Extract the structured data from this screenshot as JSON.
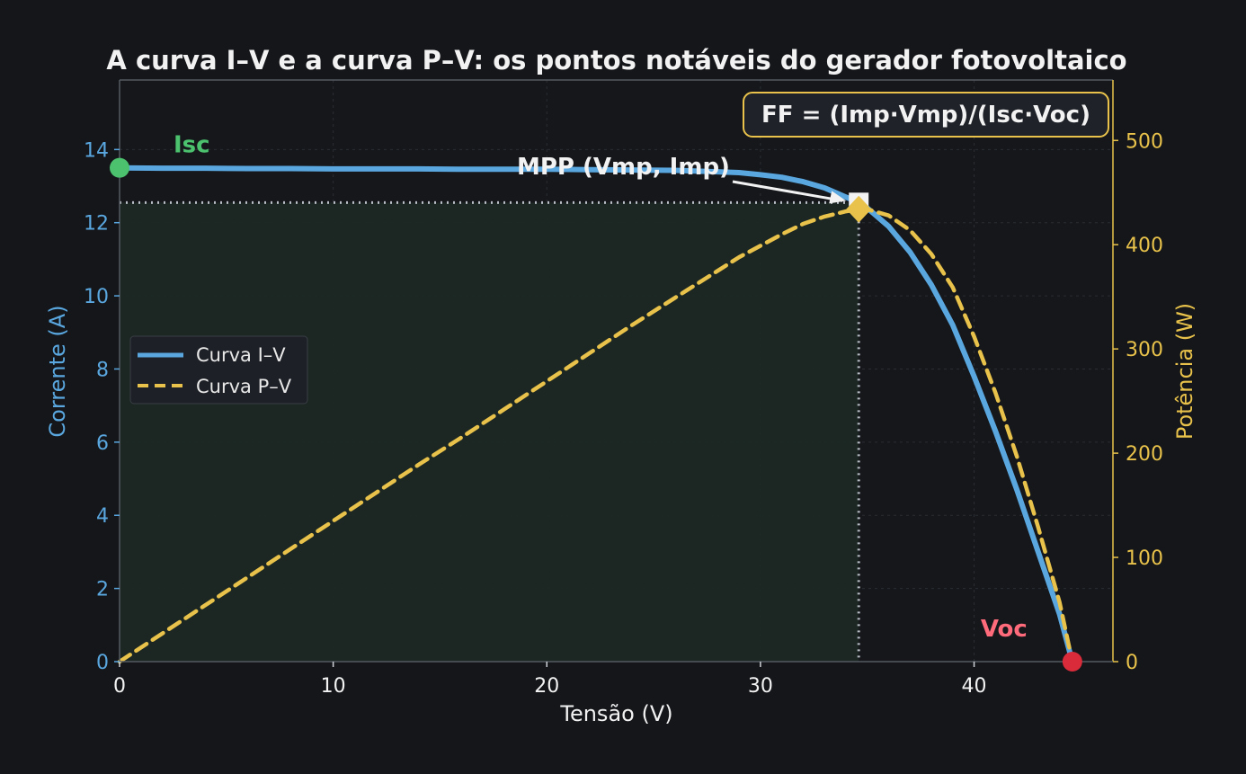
{
  "chart_data": {
    "type": "line",
    "title": "A curva I–V e a curva P–V: os pontos notáveis do gerador fotovoltaico",
    "xlabel": "Tensão (V)",
    "ylabel_left": "Corrente (A)",
    "ylabel_right": "Potência (W)",
    "xlim": [
      0,
      46.5
    ],
    "ylim_left": [
      0,
      15.9
    ],
    "ylim_right": [
      0,
      558
    ],
    "x_ticks": [
      0,
      10,
      20,
      30,
      40
    ],
    "y_left_ticks": [
      0,
      2,
      4,
      6,
      8,
      10,
      12,
      14
    ],
    "y_right_ticks": [
      0,
      100,
      200,
      300,
      400,
      500
    ],
    "grid": true,
    "legend_position": "center-left",
    "colors": {
      "iv": "#5aa7df",
      "pv": "#e8c24a",
      "isc": "#4cc26f",
      "voc": "#ff6b7a",
      "voc_marker": "#d92b3a",
      "mpp": "#f2f2f2",
      "text": "#f2f2f2",
      "region": "#1c2824"
    },
    "series": [
      {
        "name": "Curva I–V",
        "axis": "left",
        "style": "solid",
        "x": [
          0,
          2,
          4,
          6,
          8,
          10,
          12,
          14,
          16,
          18,
          20,
          22,
          24,
          26,
          28,
          29,
          30,
          31,
          32,
          33,
          34,
          34.6,
          35,
          36,
          37,
          38,
          39,
          40,
          41,
          42,
          43,
          44,
          44.6
        ],
        "y": [
          13.5,
          13.49,
          13.49,
          13.48,
          13.48,
          13.47,
          13.47,
          13.47,
          13.46,
          13.46,
          13.46,
          13.45,
          13.44,
          13.43,
          13.39,
          13.37,
          13.31,
          13.24,
          13.12,
          12.95,
          12.7,
          12.55,
          12.4,
          11.9,
          11.2,
          10.3,
          9.2,
          7.8,
          6.3,
          4.7,
          3.0,
          1.3,
          0.0
        ]
      },
      {
        "name": "Curva P–V",
        "axis": "right",
        "style": "dashed",
        "x": [
          0,
          2,
          4,
          6,
          8,
          10,
          12,
          14,
          16,
          18,
          20,
          22,
          24,
          26,
          28,
          29,
          30,
          31,
          32,
          33,
          34,
          34.6,
          35,
          36,
          37,
          38,
          39,
          40,
          41,
          42,
          43,
          44,
          44.6
        ],
        "y": [
          0,
          27,
          54,
          81,
          108,
          135,
          162,
          189,
          215,
          242,
          269,
          296,
          323,
          349,
          375,
          388,
          399,
          410,
          420,
          427,
          432,
          434,
          434,
          428,
          414,
          391,
          359,
          312,
          258,
          197,
          129,
          57,
          0
        ]
      }
    ],
    "points": {
      "isc": {
        "label": "Isc",
        "x": 0,
        "y": 13.5
      },
      "voc": {
        "label": "Voc",
        "x": 44.6,
        "y": 0
      },
      "mpp": {
        "label": "MPP (Vmp, Imp)",
        "x": 34.6,
        "y": 12.55,
        "p": 434
      }
    },
    "annotation_box": "FF = (Imp·Vmp)/(Isc·Voc)"
  }
}
